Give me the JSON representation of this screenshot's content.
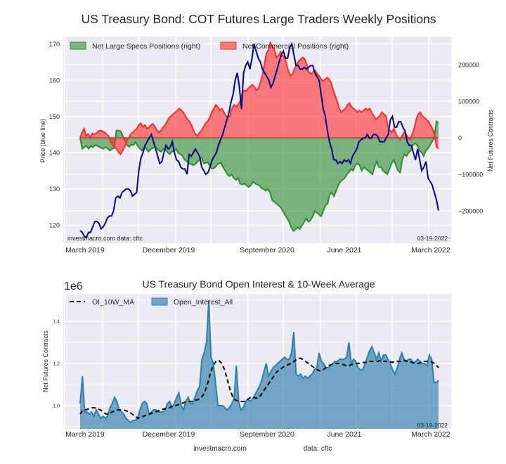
{
  "chart_data": [
    {
      "type": "line",
      "title": "US Treasury Bond: COT Futures Large Traders Weekly Positions",
      "xlabel": "",
      "ylabel": "Price (blue line)",
      "y2label": "Net Futures Contracts",
      "ylim": [
        115,
        172
      ],
      "y2lim": [
        -270000,
        270000
      ],
      "yticks": [
        120,
        130,
        140,
        150,
        160,
        170
      ],
      "y2ticks": [
        -200000,
        -100000,
        0,
        100000,
        200000
      ],
      "y2ticklabels": [
        "−200000",
        "−100000",
        "0",
        "100000",
        "200000"
      ],
      "xticklabels": [
        "March 2019",
        "December 2019",
        "September 2020",
        "June 2021",
        "March 2022"
      ],
      "grid": true,
      "legend_position": "top",
      "annotations": {
        "source": "investmacro.com   data: cftc",
        "date": "03-19-2022"
      },
      "x_range": [
        "2019-03",
        "2022-03"
      ],
      "series": [
        {
          "name": "Price",
          "color": "#00008b",
          "kind": "line",
          "values": [
            118.5,
            118,
            117,
            116.5,
            118,
            118,
            119.5,
            121,
            121,
            120.5,
            119,
            119.5,
            120.5,
            122,
            122.5,
            122.5,
            124,
            127.5,
            128,
            127.5,
            129,
            129.5,
            130,
            130,
            129.5,
            128,
            128.5,
            129,
            135,
            138.5,
            140,
            142,
            143,
            144,
            145,
            143,
            141,
            139,
            137,
            137.5,
            140,
            142,
            141,
            141.5,
            143,
            140,
            138,
            137.5,
            136,
            135.5,
            135.5,
            134,
            139.5,
            139,
            140,
            141,
            140,
            139,
            136,
            135,
            134,
            134.5,
            136,
            138,
            139,
            140,
            142,
            143.5,
            145,
            147,
            149,
            151,
            154,
            156,
            160,
            162,
            158,
            152,
            162,
            164,
            165,
            163,
            166,
            170,
            168,
            166,
            165,
            163,
            162,
            161,
            160,
            158,
            159,
            161,
            163,
            165,
            167,
            168,
            166,
            166,
            169,
            170,
            167,
            164,
            164,
            163,
            163,
            163.5,
            163,
            163.5,
            164,
            164,
            162,
            161,
            160,
            156,
            152,
            150,
            146,
            143,
            141,
            138,
            138,
            137,
            137.5,
            137,
            138,
            137.5,
            138,
            137,
            139,
            140,
            141,
            143,
            143.5,
            144,
            144,
            145,
            144,
            144,
            145,
            145,
            144.5,
            143,
            143,
            143,
            144,
            145,
            149,
            150,
            147,
            147,
            148.5,
            148.5,
            147,
            146,
            143,
            142,
            142,
            140,
            138,
            141,
            138,
            135,
            136,
            137.5,
            133,
            132,
            131,
            129,
            127,
            124
          ]
        },
        {
          "name": "Net Large Specs Positions (right)",
          "color": "#2e8b2e",
          "kind": "area",
          "values": [
            0,
            -30000,
            -25000,
            -22000,
            -30000,
            -22000,
            -26000,
            -20000,
            -22000,
            -25000,
            -28000,
            -30000,
            -25000,
            -30000,
            -35000,
            -30000,
            -28000,
            20000,
            20000,
            18000,
            5000,
            -10000,
            -20000,
            -25000,
            -18000,
            -20000,
            -12000,
            -22000,
            -30000,
            -35000,
            -25000,
            -30000,
            -38000,
            -32000,
            -28000,
            -25000,
            -30000,
            -35000,
            -38000,
            -30000,
            -33000,
            -40000,
            -45000,
            -38000,
            -36000,
            -30000,
            -42000,
            -45000,
            -50000,
            -60000,
            -65000,
            -70000,
            -72000,
            -75000,
            -72000,
            -65000,
            -60000,
            -55000,
            -70000,
            -68000,
            -68000,
            -80000,
            -85000,
            -82000,
            -75000,
            -70000,
            -68000,
            -80000,
            -90000,
            -100000,
            -105000,
            -100000,
            -110000,
            -115000,
            -110000,
            -125000,
            -128000,
            -125000,
            -130000,
            -135000,
            -130000,
            -120000,
            -125000,
            -128000,
            -130000,
            -138000,
            -140000,
            -145000,
            -140000,
            -150000,
            -170000,
            -175000,
            -180000,
            -185000,
            -190000,
            -200000,
            -210000,
            -220000,
            -230000,
            -245000,
            -255000,
            -250000,
            -245000,
            -250000,
            -240000,
            -230000,
            -220000,
            -230000,
            -225000,
            -215000,
            -200000,
            -205000,
            -210000,
            -215000,
            -200000,
            -185000,
            -180000,
            -155000,
            -150000,
            -160000,
            -145000,
            -130000,
            -120000,
            -115000,
            -110000,
            -100000,
            -95000,
            -85000,
            -90000,
            -75000,
            -70000,
            -75000,
            -90000,
            -80000,
            -85000,
            -90000,
            -95000,
            -100000,
            -80000,
            -65000,
            -80000,
            -80000,
            -90000,
            -95000,
            -100000,
            -85000,
            -70000,
            -60000,
            -75000,
            -90000,
            -95000,
            -60000,
            -45000,
            -50000,
            -40000,
            -35000,
            -20000,
            -15000,
            -20000,
            -35000,
            -40000,
            -50000,
            -35000,
            -30000,
            -20000,
            -10000,
            0,
            45000,
            40000
          ]
        },
        {
          "name": "Net Commercial Positions (right)",
          "color": "#ff2a2a",
          "kind": "area",
          "values": [
            0,
            15000,
            25000,
            5000,
            10000,
            0,
            12000,
            10000,
            12000,
            18000,
            20000,
            18000,
            15000,
            10000,
            5000,
            -10000,
            -20000,
            -25000,
            -30000,
            -40000,
            -45000,
            -35000,
            -25000,
            -10000,
            0,
            10000,
            15000,
            20000,
            25000,
            35000,
            40000,
            30000,
            35000,
            25000,
            28000,
            35000,
            38000,
            30000,
            20000,
            15000,
            20000,
            28000,
            35000,
            45000,
            55000,
            60000,
            65000,
            70000,
            75000,
            80000,
            75000,
            70000,
            60000,
            50000,
            45000,
            35000,
            20000,
            10000,
            5000,
            15000,
            20000,
            30000,
            40000,
            45000,
            55000,
            70000,
            80000,
            90000,
            85000,
            75000,
            80000,
            70000,
            60000,
            55000,
            60000,
            80000,
            90000,
            85000,
            90000,
            100000,
            120000,
            130000,
            128000,
            135000,
            140000,
            145000,
            140000,
            130000,
            135000,
            150000,
            170000,
            200000,
            230000,
            240000,
            260000,
            250000,
            240000,
            220000,
            225000,
            235000,
            225000,
            220000,
            200000,
            180000,
            170000,
            175000,
            190000,
            200000,
            210000,
            215000,
            220000,
            215000,
            200000,
            180000,
            175000,
            180000,
            185000,
            175000,
            170000,
            160000,
            155000,
            160000,
            165000,
            160000,
            150000,
            130000,
            115000,
            100000,
            80000,
            70000,
            75000,
            80000,
            90000,
            95000,
            85000,
            80000,
            75000,
            70000,
            75000,
            70000,
            75000,
            80000,
            75000,
            80000,
            70000,
            60000,
            50000,
            55000,
            60000,
            70000,
            65000,
            60000,
            30000,
            20000,
            15000,
            25000,
            10000,
            0,
            -5000,
            5000,
            15000,
            10000,
            0,
            -5000,
            10000,
            25000,
            50000,
            65000,
            70000,
            60000,
            55000,
            50000,
            45000,
            35000,
            25000,
            10000,
            -25000,
            -30000
          ]
        }
      ]
    },
    {
      "type": "area",
      "title": "US Treasury Bond Open Interest & 10-Week Average",
      "xlabel": "",
      "ylabel": "Net Futures Contracts",
      "y_scale_label": "1e6",
      "ylim": [
        0.89,
        1.55
      ],
      "yticks": [
        1.0,
        1.2,
        1.4
      ],
      "yticklabels": [
        "1.0",
        "1.2",
        "1.4"
      ],
      "xticklabels": [
        "March 2019",
        "December 2019",
        "September 2020",
        "June 2021",
        "March 2022"
      ],
      "grid": true,
      "legend_position": "top-left",
      "annotations": {
        "date": "03-19-2022",
        "footer_left": "investmacro.com",
        "footer_right": "data: cftc"
      },
      "series": [
        {
          "name": "Open_Interest_All",
          "color": "#2e7eab",
          "kind": "area",
          "values": [
            1.01,
            1.14,
            0.97,
            0.97,
            0.96,
            0.97,
            0.95,
            0.98,
            0.96,
            0.94,
            0.95,
            0.94,
            0.95,
            0.99,
            1.01,
            1.04,
            1.02,
            0.98,
            0.97,
            0.96,
            0.94,
            0.93,
            0.92,
            0.93,
            0.93,
            0.94,
            0.98,
            1.01,
            1.02,
            1.01,
            0.96,
            0.97,
            0.98,
            0.98,
            0.97,
            0.97,
            0.97,
            0.98,
            1.01,
            1.02,
            0.99,
            1.01,
            1.04,
            1.06,
            1.0,
            0.98,
            1.02,
            1.04,
            1.01,
            1.01,
            1.04,
            1.07,
            1.09,
            1.22,
            1.25,
            1.3,
            1.5,
            1.23,
            1.2,
            1.1,
            1.0,
            1.0,
            1.0,
            0.99,
            0.98,
            0.99,
            1.01,
            1.03,
            1.19,
            1.02,
            0.98,
            0.99,
            1.02,
            1.03,
            1.02,
            1.03,
            1.05,
            1.07,
            1.09,
            1.12,
            1.16,
            1.2,
            1.14,
            1.16,
            1.18,
            1.19,
            1.2,
            1.21,
            1.22,
            1.23,
            1.22,
            1.22,
            1.25,
            1.35,
            1.15,
            1.14,
            1.15,
            1.13,
            1.14,
            1.13,
            1.14,
            1.15,
            1.17,
            1.18,
            1.25,
            1.21,
            1.2,
            1.18,
            1.18,
            1.19,
            1.2,
            1.21,
            1.21,
            1.22,
            1.22,
            1.22,
            1.23,
            1.3,
            1.2,
            1.22,
            1.21,
            1.18,
            1.17,
            1.17,
            1.2,
            1.23,
            1.26,
            1.28,
            1.25,
            1.22,
            1.25,
            1.21,
            1.24,
            1.24,
            1.22,
            1.2,
            1.17,
            1.15,
            1.18,
            1.22,
            1.25,
            1.22,
            1.21,
            1.22,
            1.22,
            1.2,
            1.21,
            1.22,
            1.21,
            1.2,
            1.2,
            1.19,
            1.24,
            1.22,
            1.11,
            1.11,
            1.12
          ]
        },
        {
          "name": "OI_10W_MA",
          "color": "#000000",
          "kind": "dashed-line",
          "values": [
            0.96,
            0.98,
            0.98,
            0.985,
            0.99,
            0.99,
            0.985,
            0.98,
            0.97,
            0.96,
            0.96,
            0.97,
            0.975,
            0.98,
            0.98,
            0.98,
            0.975,
            0.97,
            0.96,
            0.95,
            0.94,
            0.945,
            0.95,
            0.955,
            0.96,
            0.965,
            0.97,
            0.975,
            0.98,
            0.985,
            0.985,
            0.99,
            1.0,
            1.0,
            1.005,
            1.01,
            1.015,
            1.02,
            1.02,
            1.02,
            1.025,
            1.03,
            1.04,
            1.06,
            1.1,
            1.15,
            1.19,
            1.21,
            1.215,
            1.2,
            1.17,
            1.12,
            1.07,
            1.035,
            1.025,
            1.02,
            1.02,
            1.02,
            1.03,
            1.04,
            1.04,
            1.035,
            1.04,
            1.06,
            1.08,
            1.1,
            1.12,
            1.14,
            1.16,
            1.17,
            1.18,
            1.19,
            1.195,
            1.2,
            1.21,
            1.22,
            1.225,
            1.22,
            1.21,
            1.2,
            1.19,
            1.18,
            1.17,
            1.165,
            1.17,
            1.18,
            1.19,
            1.195,
            1.2,
            1.2,
            1.2,
            1.195,
            1.19,
            1.19,
            1.195,
            1.2,
            1.2,
            1.2,
            1.205,
            1.205,
            1.21,
            1.21,
            1.21,
            1.21,
            1.215,
            1.21,
            1.21,
            1.21,
            1.205,
            1.21,
            1.21,
            1.21,
            1.215,
            1.21,
            1.21,
            1.205,
            1.2,
            1.2,
            1.205,
            1.21,
            1.21,
            1.21,
            1.205,
            1.195,
            1.18
          ]
        }
      ]
    }
  ]
}
